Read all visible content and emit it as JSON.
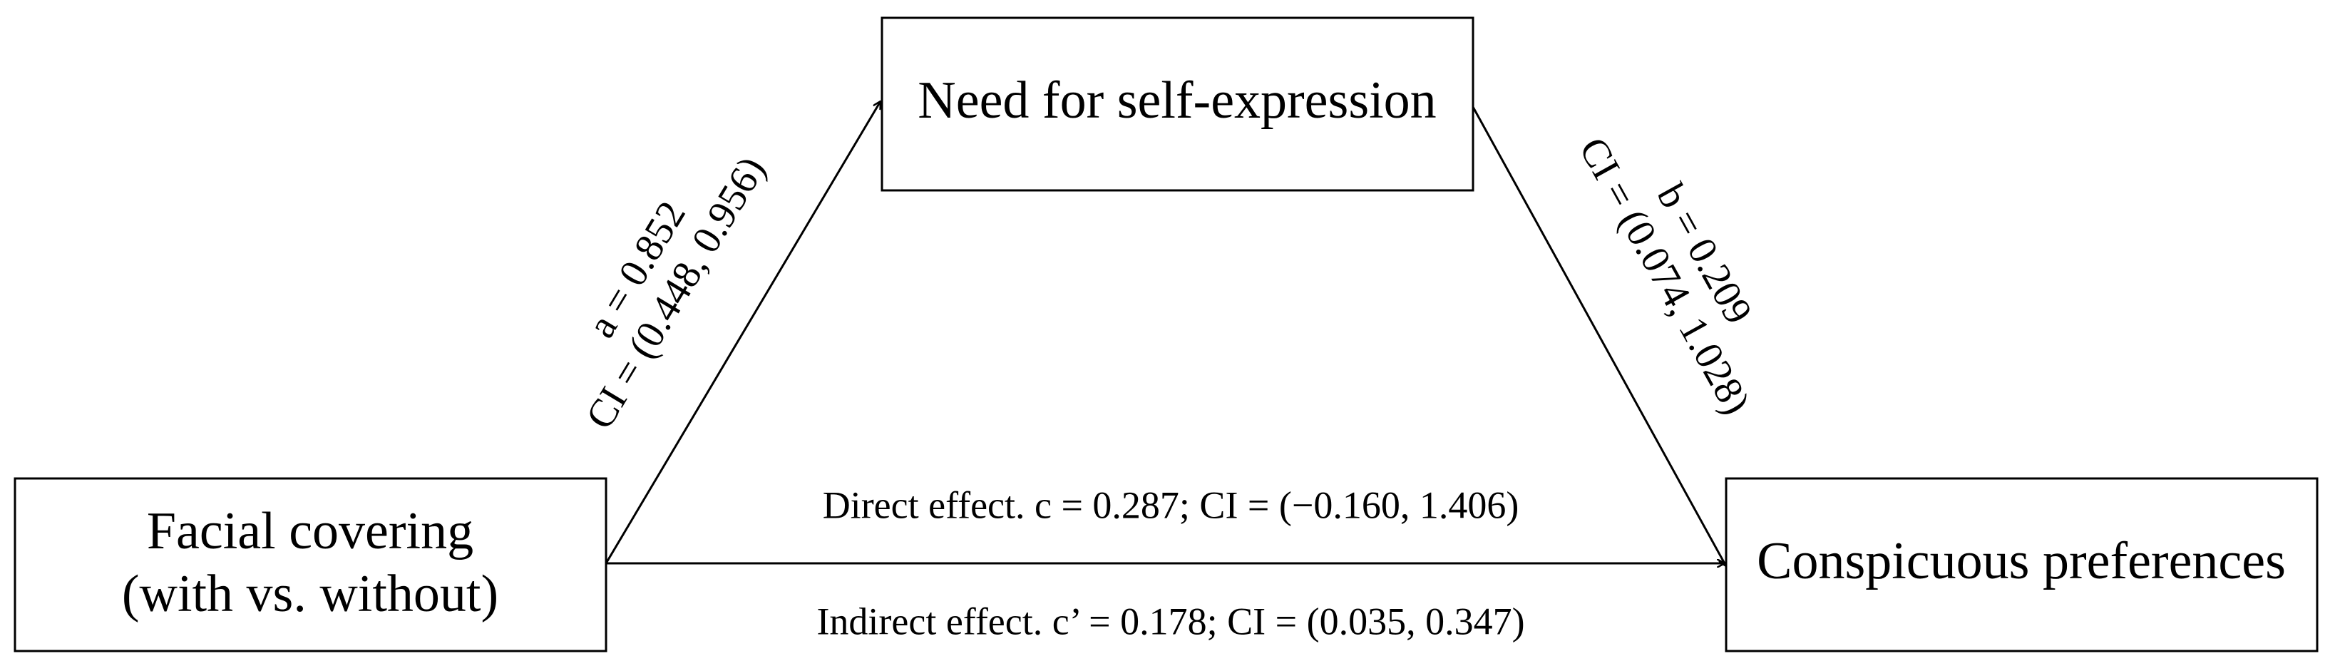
{
  "nodes": [
    {
      "label_lines": [
        "Need for self-expression"
      ]
    },
    {
      "label_lines": [
        "Facial covering",
        "(with vs. without)"
      ]
    },
    {
      "label_lines": [
        "Conspicuous preferences"
      ]
    }
  ],
  "edges": [
    {
      "label_lines": [
        "a = 0.852",
        "CI = (0.448, 0.956)"
      ]
    },
    {
      "label_lines": [
        "b = 0.209",
        "CI = (0.074, 1.028)"
      ]
    },
    {
      "label_lines": [
        "Direct effect. c = 0.287; CI = (−0.160, 1.406)",
        "Indirect effect. c’ = 0.178; CI = (0.035, 0.347)"
      ]
    }
  ]
}
